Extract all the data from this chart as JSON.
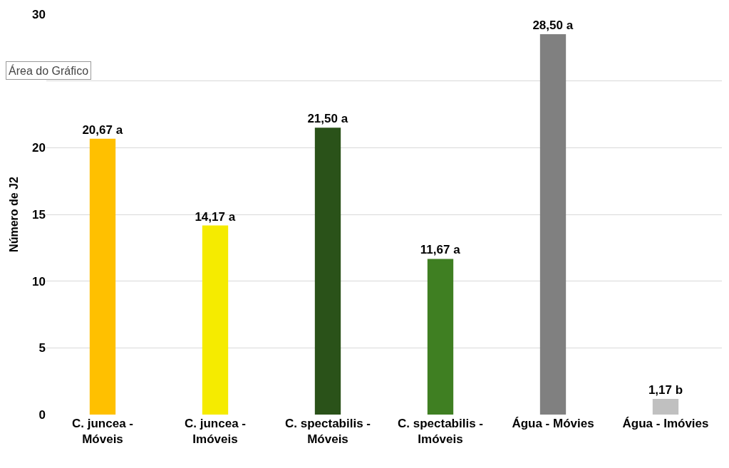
{
  "chart_data": {
    "type": "bar",
    "ylabel": "Número de J2",
    "categories": [
      "C. juncea -\nMóveis",
      "C. juncea -\nImóveis",
      "C. spectabilis -\nMóveis",
      "C. spectabilis -\nImóveis",
      "Água - Móvies",
      "Água - Imóvies"
    ],
    "values": [
      20.67,
      14.17,
      21.5,
      11.67,
      28.5,
      1.17
    ],
    "colors": [
      "#ffc000",
      "#f5eb00",
      "#2a5219",
      "#3f7f22",
      "#808080",
      "#c0c0c0"
    ],
    "value_labels": [
      "20,67 a",
      "14,17 a",
      "21,50 a",
      "11,67 a",
      "28,50 a",
      "1,17 b"
    ],
    "annotations": [
      "Área do Gráfico"
    ],
    "ylim": [
      0,
      30
    ],
    "yticks": [
      0,
      5,
      10,
      15,
      20,
      {
        "value": 25,
        "label": null
      },
      30
    ],
    "grid": "y"
  }
}
